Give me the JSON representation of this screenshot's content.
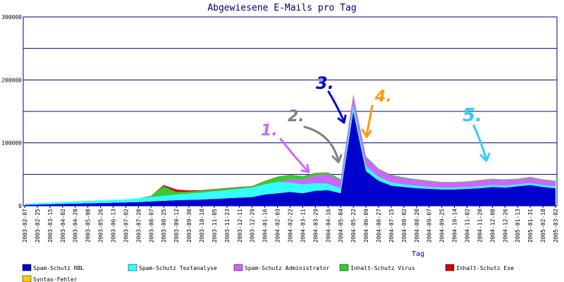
{
  "chart_data": {
    "type": "area",
    "title": "Abgewiesene E-Mails pro Tag",
    "xlabel": "Tag",
    "ylabel": "",
    "ylim": [
      0,
      300000
    ],
    "yticks": [
      0,
      100000,
      200000,
      300000
    ],
    "ytick_labels": [
      "0",
      "100000",
      "200000",
      "300000"
    ],
    "x": [
      "2003-02-07",
      "2003-02-25",
      "2003-03-15",
      "2003-04-02",
      "2003-04-20",
      "2003-05-08",
      "2003-05-26",
      "2003-06-13",
      "2003-07-02",
      "2003-07-20",
      "2003-08-07",
      "2003-08-25",
      "2003-09-12",
      "2003-09-30",
      "2003-10-18",
      "2003-11-05",
      "2003-11-23",
      "2003-12-11",
      "2003-12-29",
      "2004-01-16",
      "2004-02-03",
      "2004-02-22",
      "2004-03-11",
      "2004-03-29",
      "2004-04-16",
      "2004-05-04",
      "2004-05-22",
      "2004-06-09",
      "2004-06-27",
      "2004-07-15",
      "2004-08-02",
      "2004-08-20",
      "2004-09-07",
      "2004-09-25",
      "2004-10-14",
      "2004-11-02",
      "2004-11-20",
      "2004-12-08",
      "2004-12-26",
      "2005-01-13",
      "2005-01-31",
      "2005-02-18",
      "2005-03-02"
    ],
    "series": [
      {
        "name": "Spam-Schutz RBL",
        "color": "#0000cc",
        "values": [
          1500,
          2000,
          2500,
          3000,
          3500,
          4000,
          4500,
          5000,
          5500,
          6000,
          7000,
          8000,
          9000,
          9500,
          10000,
          11000,
          12000,
          13000,
          14000,
          18000,
          20000,
          22000,
          20000,
          24000,
          25000,
          20000,
          150000,
          55000,
          40000,
          32000,
          30000,
          28000,
          27000,
          26000,
          26000,
          27000,
          28000,
          30000,
          29000,
          31000,
          33000,
          30000,
          28000
        ]
      },
      {
        "name": "Spam-Schutz Textanalyse",
        "color": "#33ffff",
        "values": [
          1500,
          2000,
          2500,
          3000,
          3500,
          4000,
          4500,
          4500,
          5000,
          6000,
          7000,
          8000,
          9000,
          10000,
          11000,
          12000,
          13000,
          14000,
          15000,
          16000,
          18000,
          15000,
          14000,
          12000,
          10000,
          8000,
          10000,
          8000,
          6000,
          5000,
          4000,
          4000,
          3000,
          3000,
          3000,
          3000,
          3000,
          3000,
          3000,
          3000,
          3000,
          3000,
          3000
        ]
      },
      {
        "name": "Spam-Schutz Administrator",
        "color": "#cc66ff",
        "values": [
          0,
          0,
          0,
          0,
          0,
          0,
          0,
          0,
          0,
          0,
          0,
          0,
          0,
          0,
          0,
          0,
          0,
          0,
          0,
          0,
          0,
          5000,
          8000,
          12000,
          15000,
          12000,
          15000,
          14000,
          12000,
          11000,
          10000,
          9000,
          9000,
          8000,
          8000,
          8000,
          9000,
          9000,
          9000,
          8000,
          9000,
          8000,
          8000
        ]
      },
      {
        "name": "Inhalt-Schutz Virus",
        "color": "#33cc33",
        "values": [
          0,
          0,
          0,
          0,
          0,
          0,
          0,
          0,
          0,
          0,
          2000,
          15000,
          4000,
          3000,
          3000,
          3000,
          2500,
          2500,
          2000,
          5000,
          8000,
          7000,
          5000,
          4000,
          3000,
          2000,
          2000,
          1500,
          1000,
          1000,
          1000,
          1000,
          800,
          800,
          800,
          800,
          800,
          800,
          800,
          800,
          800,
          800,
          800
        ]
      },
      {
        "name": "Inhalt-Schutz Exe",
        "color": "#cc0000",
        "values": [
          0,
          0,
          0,
          0,
          0,
          0,
          0,
          0,
          0,
          0,
          0,
          2000,
          4000,
          2000,
          1000,
          800,
          700,
          600,
          500,
          500,
          400,
          300,
          300,
          300,
          200,
          200,
          200,
          200,
          200,
          200,
          200,
          200,
          200,
          200,
          200,
          200,
          200,
          200,
          200,
          200,
          200,
          200,
          200
        ]
      },
      {
        "name": "Syntax-Fehler",
        "color": "#ffcc00",
        "values": [
          0,
          0,
          0,
          0,
          0,
          0,
          0,
          0,
          0,
          0,
          0,
          0,
          0,
          0,
          0,
          0,
          0,
          0,
          0,
          0,
          0,
          0,
          0,
          0,
          0,
          0,
          0,
          0,
          0,
          0,
          0,
          0,
          0,
          0,
          0,
          0,
          0,
          0,
          0,
          0,
          0,
          0,
          0
        ]
      }
    ],
    "grid": true,
    "legend": "bottom",
    "annotations": [
      {
        "text": "1.",
        "color": "#cc66ff"
      },
      {
        "text": "2.",
        "color": "#808080"
      },
      {
        "text": "3.",
        "color": "#0000cc"
      },
      {
        "text": "4.",
        "color": "#ff9900"
      },
      {
        "text": "5.",
        "color": "#33ccff"
      }
    ]
  }
}
